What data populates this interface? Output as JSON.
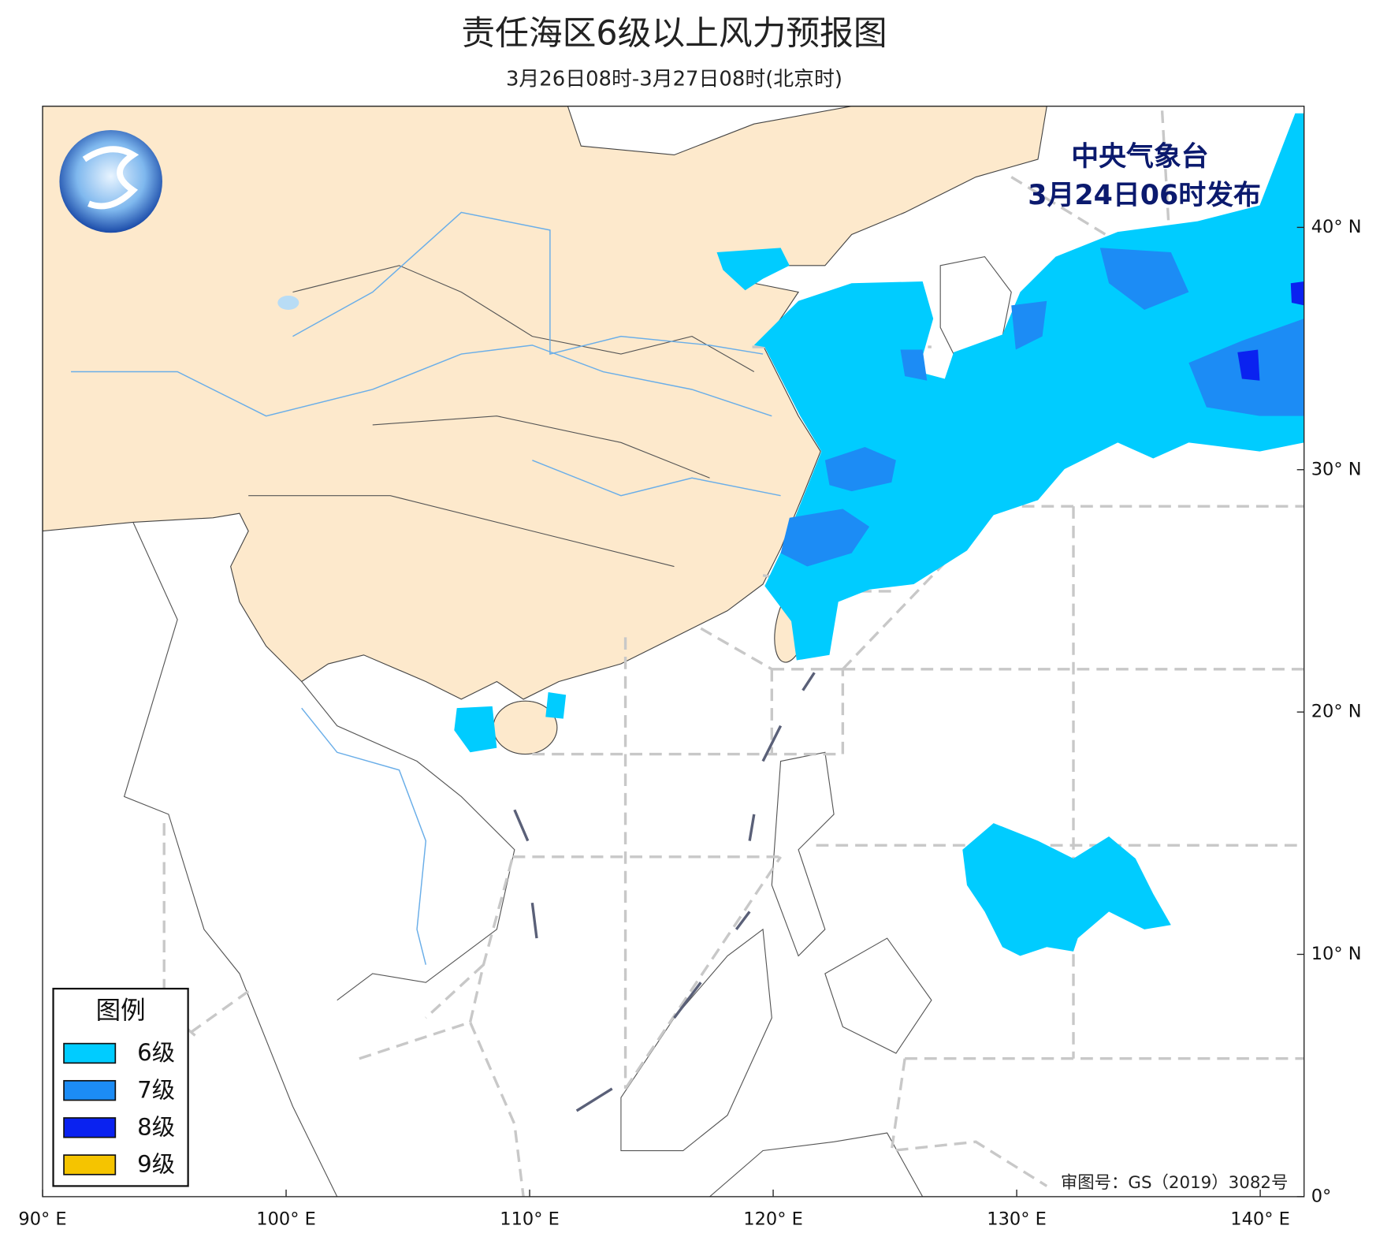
{
  "chart_data": {
    "type": "map",
    "title": "责任海区6级以上风力预报图",
    "subtitle": "3月26日08时-3月27日08时(北京时)",
    "issuer": {
      "name": "中央气象台",
      "time": "3月24日06时发布"
    },
    "approval": "审图号：GS（2019）3082号",
    "legend": {
      "title": "图例",
      "items": [
        {
          "label": "6级",
          "color": "#00ccff"
        },
        {
          "label": "7级",
          "color": "#1c8cf5"
        },
        {
          "label": "8级",
          "color": "#0a22f0"
        },
        {
          "label": "9级",
          "color": "#f5c400"
        }
      ]
    },
    "xlim": [
      90,
      141.8
    ],
    "ylim": [
      0,
      45
    ],
    "xticks": [
      {
        "value": 90,
        "label": "90° E"
      },
      {
        "value": 100,
        "label": "100° E"
      },
      {
        "value": 110,
        "label": "110° E"
      },
      {
        "value": 120,
        "label": "120° E"
      },
      {
        "value": 130,
        "label": "130° E"
      },
      {
        "value": 140,
        "label": "140° E"
      }
    ],
    "yticks": [
      {
        "value": 0,
        "label": "0°"
      },
      {
        "value": 10,
        "label": "10° N"
      },
      {
        "value": 20,
        "label": "20° N"
      },
      {
        "value": 30,
        "label": "30° N"
      },
      {
        "value": 40,
        "label": "40° N"
      }
    ]
  }
}
